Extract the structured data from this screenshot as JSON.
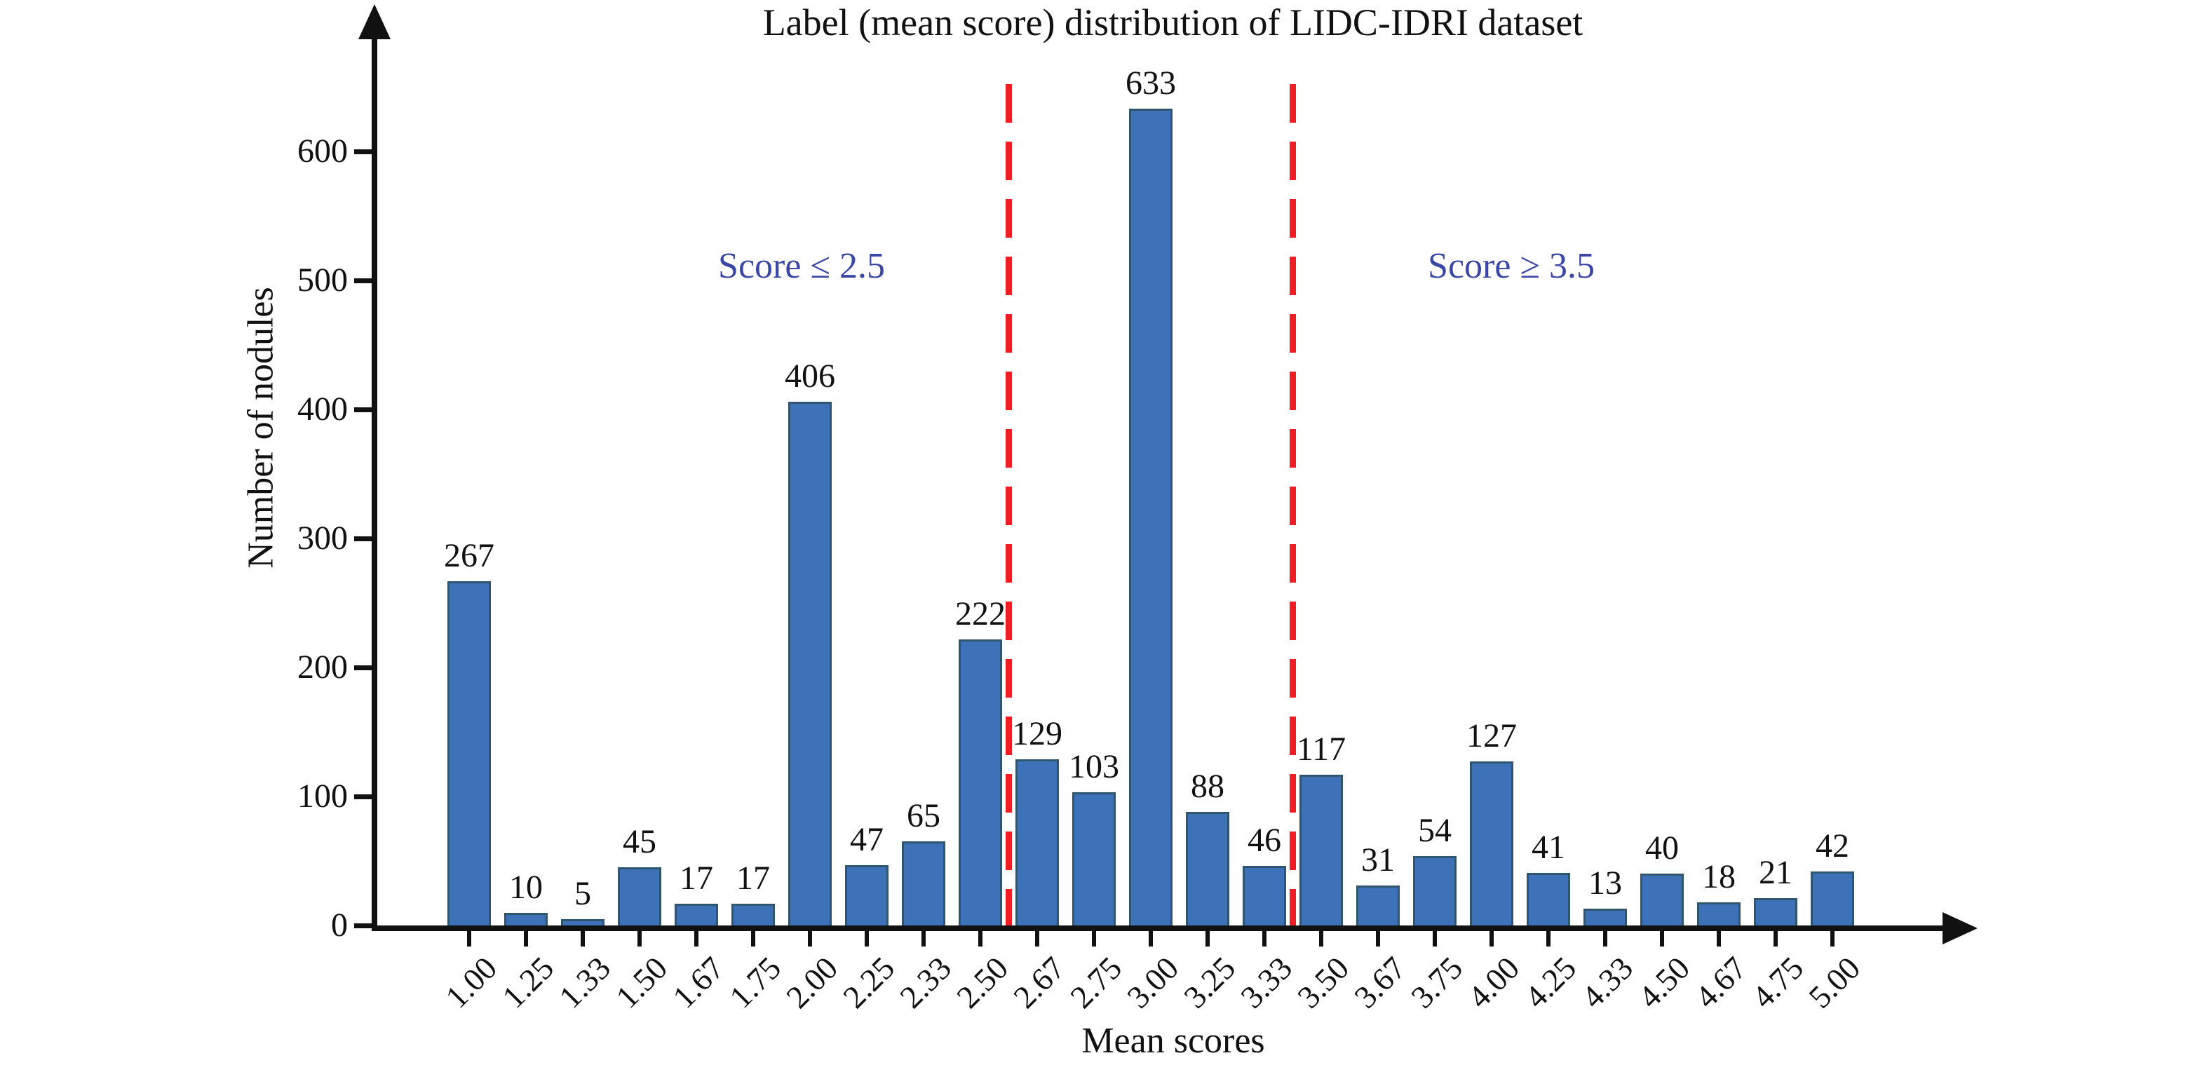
{
  "chart_data": {
    "type": "bar",
    "title": "Label (mean score) distribution of LIDC-IDRI dataset",
    "xlabel": "Mean scores",
    "ylabel": "Number of nodules",
    "categories": [
      "1.00",
      "1.25",
      "1.33",
      "1.50",
      "1.67",
      "1.75",
      "2.00",
      "2.25",
      "2.33",
      "2.50",
      "2.67",
      "2.75",
      "3.00",
      "3.25",
      "3.33",
      "3.50",
      "3.67",
      "3.75",
      "4.00",
      "4.25",
      "4.33",
      "4.50",
      "4.67",
      "4.75",
      "5.00"
    ],
    "values": [
      267,
      10,
      5,
      45,
      17,
      17,
      406,
      47,
      65,
      222,
      129,
      103,
      633,
      88,
      46,
      117,
      31,
      54,
      127,
      41,
      13,
      40,
      18,
      21,
      42
    ],
    "yticks": [
      0,
      100,
      200,
      300,
      400,
      500,
      600
    ],
    "ylim": [
      0,
      690
    ],
    "grid": false,
    "legend": "none",
    "bar_color": "#3E72B8",
    "bar_border_color": "#30566F",
    "axis_color": "#111111",
    "dividers": [
      {
        "after_category": "2.50",
        "color": "#EE1E24",
        "style": "dashed"
      },
      {
        "after_category": "3.33",
        "color": "#EE1E24",
        "style": "dashed"
      }
    ],
    "annotations": [
      {
        "text": "Score ≤ 2.5",
        "color": "#3A47A5",
        "side": "left"
      },
      {
        "text": "Score ≥ 3.5",
        "color": "#3A47A5",
        "side": "right"
      }
    ]
  }
}
